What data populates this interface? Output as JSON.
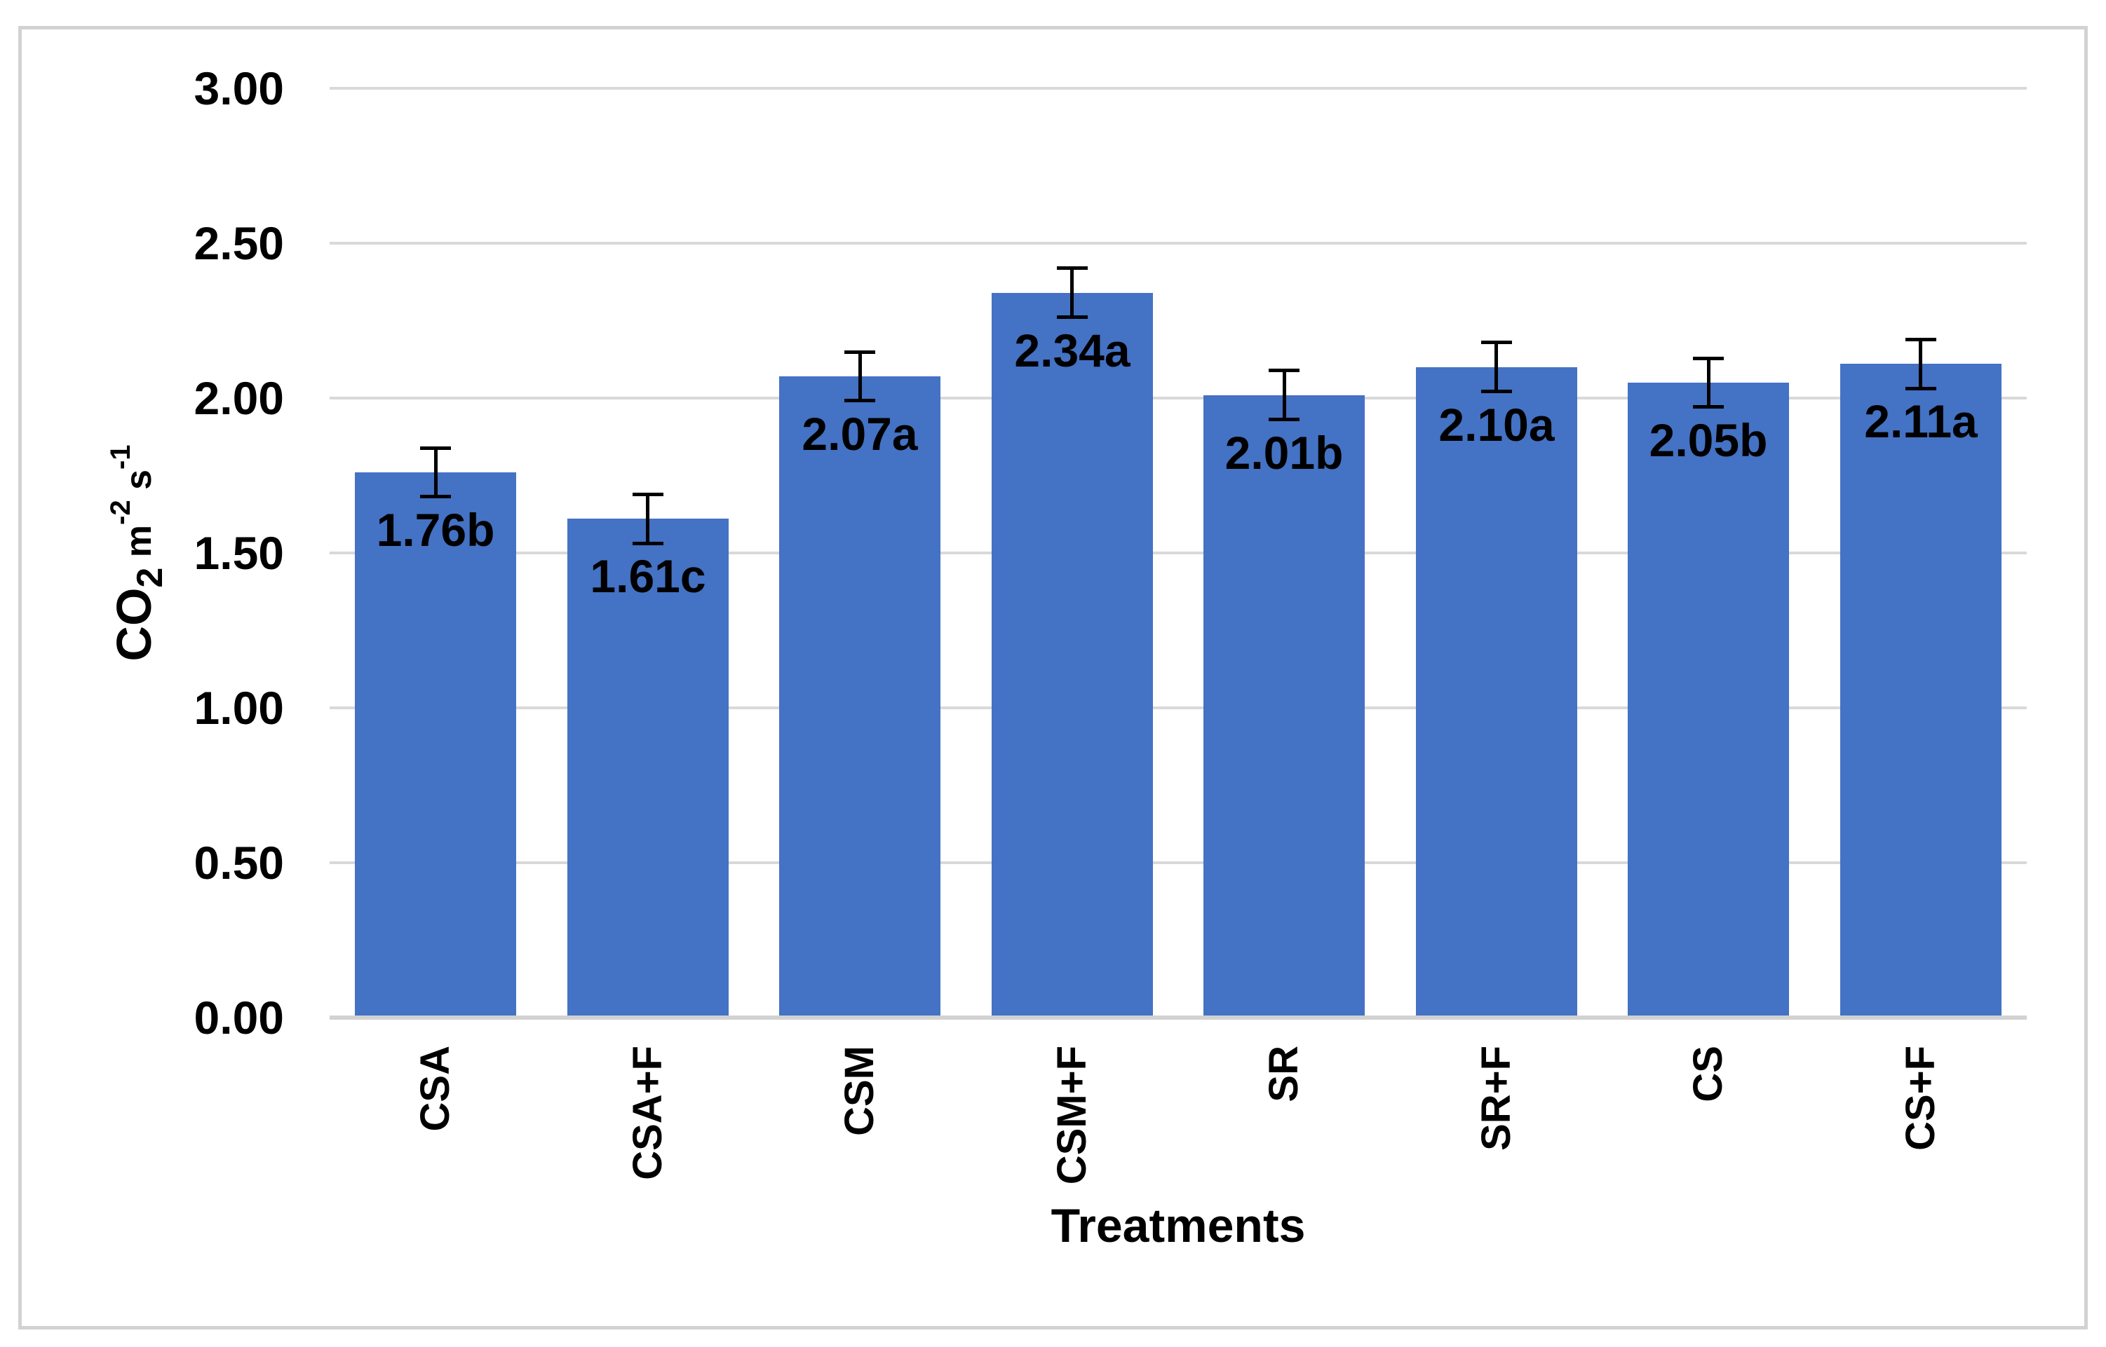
{
  "chart_data": {
    "type": "bar",
    "title": "",
    "xlabel": "Treatments",
    "ylabel": "CO2 m-2 s-1",
    "ylabel_segments": [
      {
        "text": "CO",
        "style": "base"
      },
      {
        "text": "2",
        "style": "sub"
      },
      {
        "text": " m",
        "style": "small"
      },
      {
        "text": "-2",
        "style": "sup"
      },
      {
        "text": " s",
        "style": "small"
      },
      {
        "text": "-1",
        "style": "sup"
      }
    ],
    "categories": [
      "CSA",
      "CSA+F",
      "CSM",
      "CSM+F",
      "SR",
      "SR+F",
      "CS",
      "CS+F"
    ],
    "values": [
      1.76,
      1.61,
      2.07,
      2.34,
      2.01,
      2.1,
      2.05,
      2.11
    ],
    "data_labels": [
      "1.76b",
      "1.61c",
      "2.07a",
      "2.34a",
      "2.01b",
      "2.10a",
      "2.05b",
      "2.11a"
    ],
    "error_bars": [
      0.08,
      0.08,
      0.08,
      0.08,
      0.08,
      0.08,
      0.08,
      0.08
    ],
    "yticks": [
      "3.00",
      "2.50",
      "2.00",
      "1.50",
      "1.00",
      "0.50",
      "0.00"
    ],
    "ylim": [
      0,
      3
    ],
    "grid": true,
    "legend": "none",
    "colors": {
      "bar_fill": "#4472C4",
      "gridline": "#D9D9D9",
      "axis_line": "#D2D2D2",
      "error_bar": "#000000",
      "text": "#000000",
      "chart_border": "#D2D2D2",
      "background": "#FFFFFF"
    }
  }
}
